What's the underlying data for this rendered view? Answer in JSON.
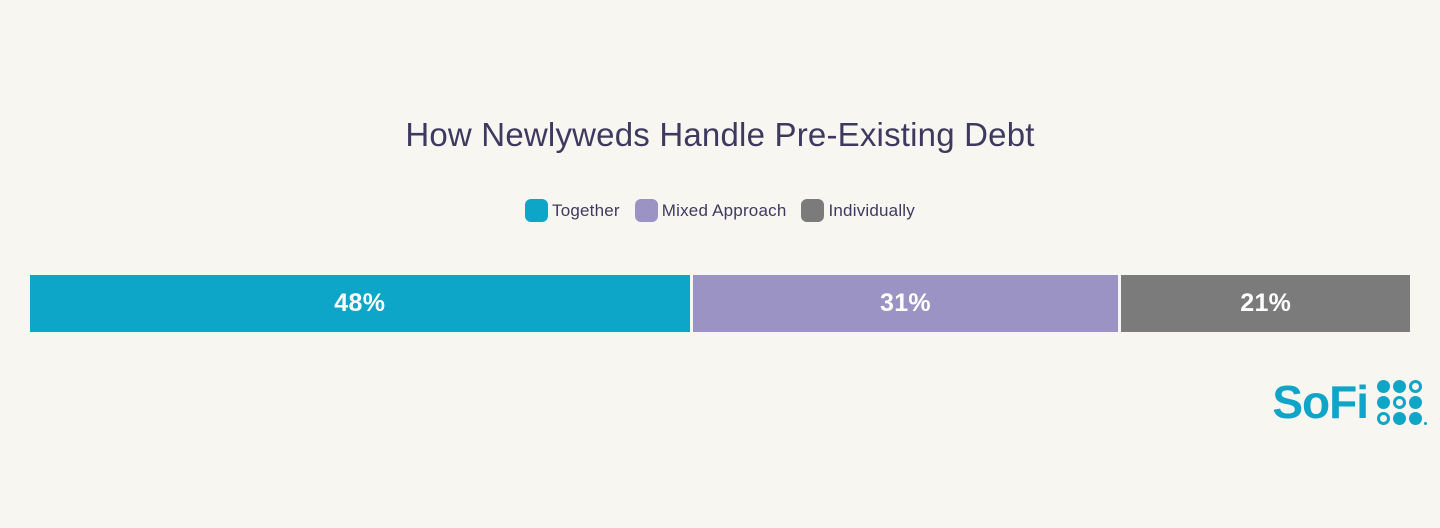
{
  "page": {
    "background_color": "#F8F6F1",
    "text_color": "#3E3A5F"
  },
  "chart_data": {
    "type": "bar",
    "variant": "horizontal-stacked-single-bar",
    "title": "How Newlyweds Handle Pre-Existing Debt",
    "legend_position": "top-center",
    "value_range": [
      0,
      100
    ],
    "series": [
      {
        "key": "together",
        "name": "Together",
        "value": 48,
        "label": "48%",
        "color": "#0DA6C9"
      },
      {
        "key": "mixed-approach",
        "name": "Mixed Approach",
        "value": 31,
        "label": "31%",
        "color": "#9B93C3"
      },
      {
        "key": "individually",
        "name": "Individually",
        "value": 21,
        "label": "21%",
        "color": "#7C7B7B"
      }
    ],
    "value_label_color": "#FFFFFF"
  },
  "logo": {
    "text": "SoFi",
    "color": "#0EA5C7",
    "dot_pattern": [
      "filled",
      "filled",
      "outline",
      "filled",
      "outline",
      "filled",
      "outline",
      "filled",
      "filled"
    ]
  }
}
